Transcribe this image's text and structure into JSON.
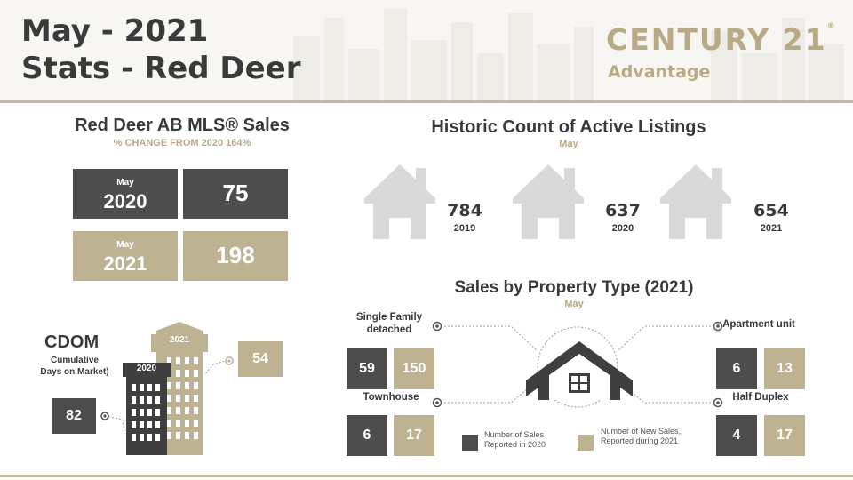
{
  "header": {
    "title_line1": "May - 2021",
    "title_line2": "Stats - Red Deer",
    "logo_main": "CENTURY 21",
    "logo_mark": "®",
    "logo_sub": "Advantage"
  },
  "sales": {
    "title": "Red Deer AB MLS® Sales",
    "subtitle": "% CHANGE FROM 2020 164%",
    "rows": [
      {
        "month": "May",
        "year": "2020",
        "value": "75"
      },
      {
        "month": "May",
        "year": "2021",
        "value": "198"
      }
    ]
  },
  "historic": {
    "title": "Historic Count of Active Listings",
    "subtitle": "May",
    "items": [
      {
        "value": "784",
        "year": "2019"
      },
      {
        "value": "637",
        "year": "2020"
      },
      {
        "value": "654",
        "year": "2021"
      }
    ]
  },
  "cdom": {
    "title": "CDOM",
    "subtitle": "Cumulative Days on Market)",
    "label_2020": "2020",
    "label_2021": "2021",
    "value_2020": "82",
    "value_2021": "54"
  },
  "property": {
    "title": "Sales by Property Type (2021)",
    "subtitle": "May",
    "types": [
      {
        "label": "Single Family detached",
        "sales_2020": "59",
        "sales_2021": "150"
      },
      {
        "label": "Townhouse",
        "sales_2020": "6",
        "sales_2021": "17"
      },
      {
        "label": "Apartment unit",
        "sales_2020": "6",
        "sales_2021": "13"
      },
      {
        "label": "Half Duplex",
        "sales_2020": "4",
        "sales_2021": "17"
      }
    ],
    "legend": {
      "dark": "Number of Sales Reported in 2020",
      "gold": "Number of New Sales, Reported during 2021"
    }
  },
  "colors": {
    "dark": "#4d4d4d",
    "gold": "#bdb292",
    "house_grey": "#d9d9d9"
  }
}
